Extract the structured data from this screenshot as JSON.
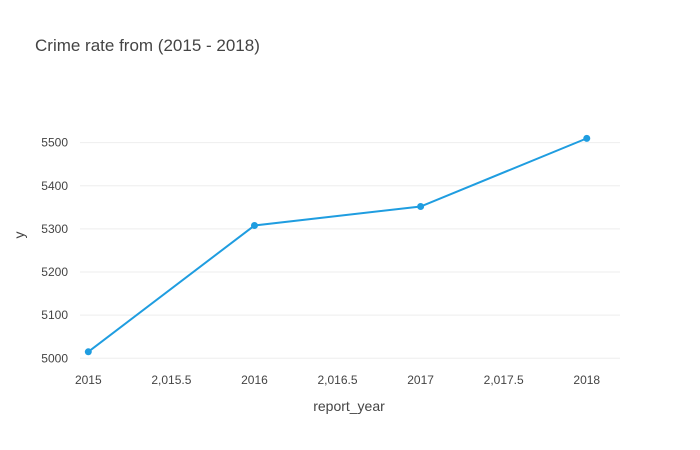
{
  "chart_data": {
    "type": "line",
    "title": "Crime rate from (2015 - 2018)",
    "xlabel": "report_year",
    "ylabel": "y",
    "x": [
      2015,
      2016,
      2017,
      2018
    ],
    "series": [
      {
        "values": [
          5015,
          5308,
          5352,
          5510
        ]
      }
    ],
    "xlim": [
      2014.95,
      2018.2
    ],
    "ylim": [
      4996,
      5599
    ],
    "x_ticks": [
      2015,
      2015.5,
      2016,
      2016.5,
      2017,
      2017.5,
      2018
    ],
    "x_tick_labels": [
      "2015",
      "2,015.5",
      "2016",
      "2,016.5",
      "2017",
      "2,017.5",
      "2018"
    ],
    "y_ticks": [
      5000,
      5100,
      5200,
      5300,
      5400,
      5500
    ],
    "y_tick_labels": [
      "5000",
      "5100",
      "5200",
      "5300",
      "5400",
      "5500"
    ],
    "grid": "horizontal",
    "line_color": "#1f9de0"
  }
}
